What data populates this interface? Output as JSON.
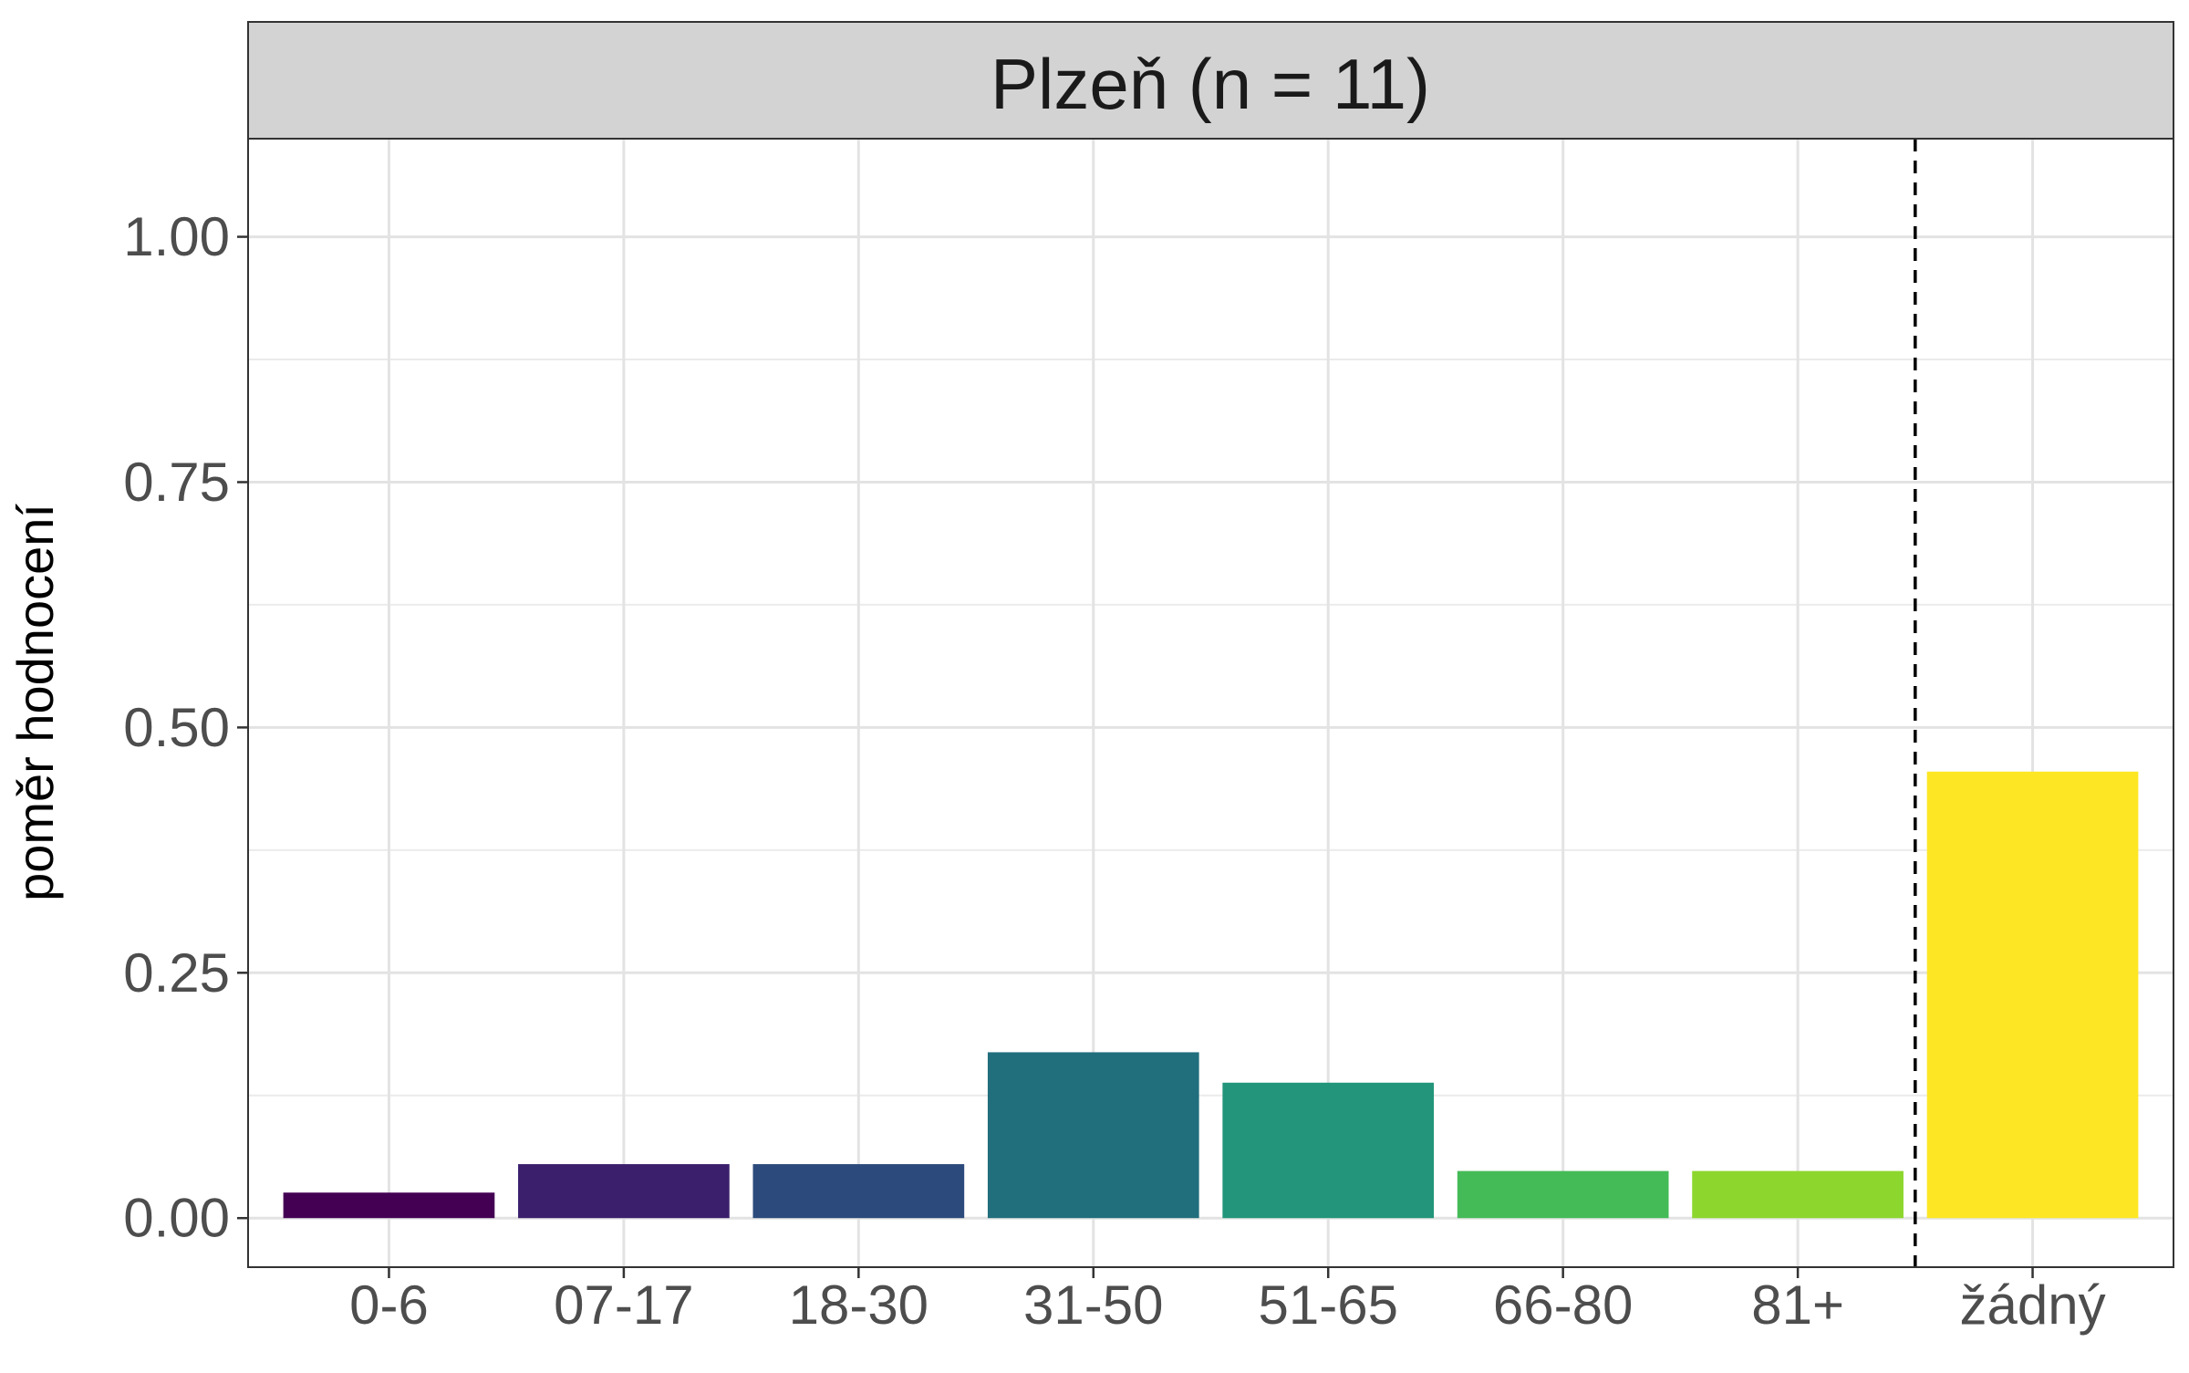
{
  "chart_data": {
    "type": "bar",
    "title": "Plzeň (n = 11)",
    "xlabel": "",
    "ylabel": "poměr hodnocení",
    "categories": [
      "0-6",
      "07-17",
      "18-30",
      "31-50",
      "51-65",
      "66-80",
      "81+",
      "žádný"
    ],
    "values": [
      0.026,
      0.055,
      0.055,
      0.169,
      0.138,
      0.048,
      0.048,
      0.455
    ],
    "colors": [
      "#440154",
      "#3B1F6C",
      "#2C4A7C",
      "#216E7C",
      "#22957A",
      "#44BB57",
      "#8CD62E",
      "#FDE725"
    ],
    "ylim": [
      -0.05,
      1.1
    ],
    "yticks": [
      0.0,
      0.25,
      0.5,
      0.75,
      1.0
    ],
    "ytick_labels": [
      "0.00",
      "0.25",
      "0.50",
      "0.75",
      "1.00"
    ],
    "separator_after_category": "81+",
    "grid": true,
    "strip_color": "#D3D3D3"
  }
}
